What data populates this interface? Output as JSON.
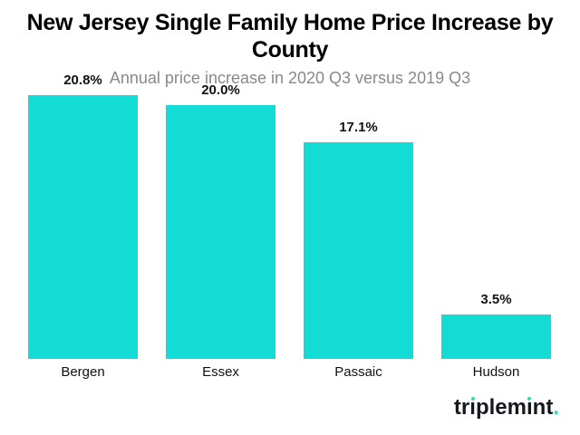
{
  "chart_data": {
    "type": "bar",
    "title": "New Jersey Single Family Home Price Increase by County",
    "subtitle": "Annual price increase in 2020 Q3 versus 2019 Q3",
    "categories": [
      "Bergen",
      "Essex",
      "Passaic",
      "Hudson"
    ],
    "values": [
      20.8,
      20.0,
      17.1,
      3.5
    ],
    "value_labels": [
      "20.8%",
      "20.0%",
      "17.1%",
      "3.5%"
    ],
    "xlabel": "",
    "ylabel": "",
    "ylim": [
      0,
      20.8
    ],
    "grid": false,
    "legend_position": "none",
    "bar_color": "#12dcd4",
    "title_color": "#000000",
    "subtitle_color": "#898989",
    "label_color": "#111111"
  },
  "branding": {
    "logo_text": "triplemint",
    "logo_suffix": ".",
    "logo_text_color": "#15181f",
    "logo_accent_color": "#3dd6a4"
  }
}
